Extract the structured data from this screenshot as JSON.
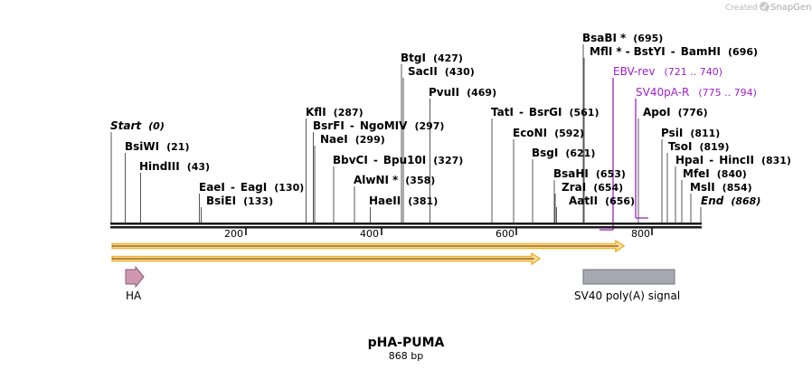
{
  "credit": {
    "prefix": "Created by",
    "brand": "SnapGene"
  },
  "title": "pHA-PUMA",
  "length_label": "868 bp",
  "axis_ticks": [
    "200",
    "400",
    "600",
    "800"
  ],
  "sites": [
    {
      "name": "Start",
      "pos": "(0)"
    },
    {
      "name": "BsiWI",
      "pos": "(21)"
    },
    {
      "name": "HindIII",
      "pos": "(43)"
    },
    {
      "name": "EaeI",
      "dash": "-",
      "name2": "EagI",
      "pos": "(130)"
    },
    {
      "name": "BsiEI",
      "pos": "(133)"
    },
    {
      "name": "KflI",
      "pos": "(287)"
    },
    {
      "name": "BsrFI",
      "dash": "-",
      "name2": "NgoMIV",
      "pos": "(297)"
    },
    {
      "name": "NaeI",
      "pos": "(299)"
    },
    {
      "name": "BbvCI",
      "dash": "-",
      "name2": "Bpu10I",
      "pos": "(327)"
    },
    {
      "name": "AlwNI",
      "star": "*",
      "pos": "(358)"
    },
    {
      "name": "HaeII",
      "pos": "(381)"
    },
    {
      "name": "BtgI",
      "pos": "(427)"
    },
    {
      "name": "SacII",
      "pos": "(430)"
    },
    {
      "name": "PvuII",
      "pos": "(469)"
    },
    {
      "name": "TatI",
      "dash": "-",
      "name2": "BsrGI",
      "pos": "(561)"
    },
    {
      "name": "EcoNI",
      "pos": "(592)"
    },
    {
      "name": "BsgI",
      "pos": "(621)"
    },
    {
      "name": "BsaHI",
      "pos": "(653)"
    },
    {
      "name": "ZraI",
      "pos": "(654)"
    },
    {
      "name": "AatII",
      "pos": "(656)"
    },
    {
      "name": "BsaBI",
      "star": "*",
      "pos": "(695)"
    },
    {
      "name": "MflI",
      "star": "*",
      "dash": "-",
      "name2": "BstYI",
      "dash2": "-",
      "name3": "BamHI",
      "pos": "(696)"
    },
    {
      "name": "ApoI",
      "pos": "(776)"
    },
    {
      "name": "PsiI",
      "pos": "(811)"
    },
    {
      "name": "TsoI",
      "pos": "(819)"
    },
    {
      "name": "HpaI",
      "dash": "-",
      "name2": "HincII",
      "pos": "(831)"
    },
    {
      "name": "MfeI",
      "pos": "(840)"
    },
    {
      "name": "MslI",
      "pos": "(854)"
    },
    {
      "name": "End",
      "pos": "(868)"
    }
  ],
  "primers": [
    {
      "name": "EBV-rev",
      "range": "(721 .. 740)"
    },
    {
      "name": "SV40pA-R",
      "range": "(775 .. 794)"
    }
  ],
  "features": [
    {
      "name": "HA"
    },
    {
      "name": "SV40 poly(A) signal"
    }
  ],
  "colors": {
    "primer": "#a020c8",
    "orf_fill": "#ffd98a",
    "orf_outline": "#e6a020",
    "orf_stroke": "#8a5a10",
    "ha_fill": "#d098b0",
    "sv40_fill": "#a8a8b0"
  }
}
